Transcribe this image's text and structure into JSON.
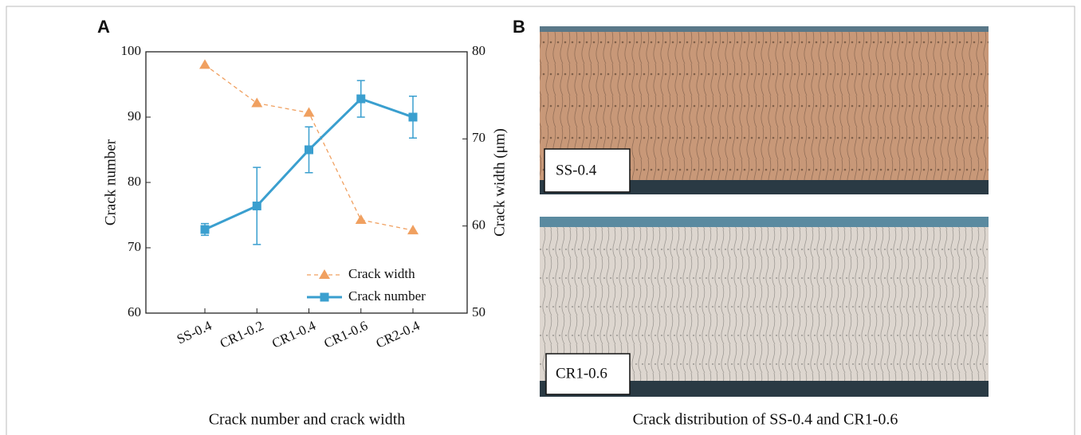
{
  "chart_data": {
    "type": "line",
    "panel_label": "A",
    "caption": "Crack number and crack width",
    "categories": [
      "SS-0.4",
      "CR1-0.2",
      "CR1-0.4",
      "CR1-0.6",
      "CR2-0.4"
    ],
    "ylabel": "Crack number",
    "y2label": "Crack width (μm)",
    "ylim": [
      60,
      100
    ],
    "yticks": [
      60,
      70,
      80,
      90,
      100
    ],
    "y2lim": [
      50,
      80
    ],
    "y2ticks": [
      50,
      60,
      70,
      80
    ],
    "legend": "lower right",
    "series": [
      {
        "name": "Crack width",
        "color": "#f0a060",
        "axis": "y2",
        "marker": "triangle",
        "dashed": true,
        "values": [
          78.5,
          74.1,
          73.0,
          60.7,
          59.5
        ]
      },
      {
        "name": "Crack number",
        "color": "#3a9fcf",
        "marker": "square",
        "dashed": false,
        "values": [
          72.8,
          76.4,
          85.0,
          92.8,
          90.0
        ],
        "errors": [
          0.9,
          5.9,
          3.5,
          2.8,
          3.2
        ]
      }
    ]
  },
  "photo_panel": {
    "label": "B",
    "caption": "Crack distribution of SS-0.4 and CR1-0.6",
    "photos": [
      {
        "label": "SS-0.4"
      },
      {
        "label": "CR1-0.6"
      }
    ]
  }
}
